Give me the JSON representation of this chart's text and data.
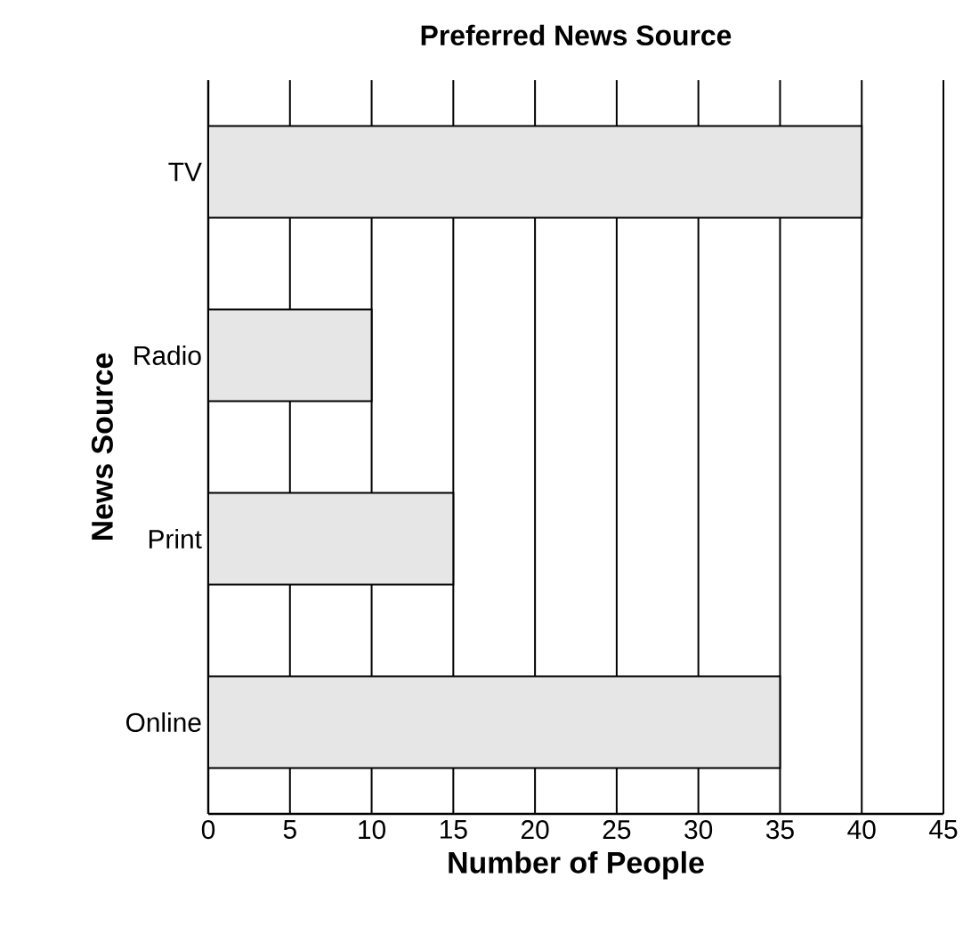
{
  "chart_data": {
    "type": "bar",
    "orientation": "horizontal",
    "title": "Preferred News Source",
    "xlabel": "Number of People",
    "ylabel": "News Source",
    "categories": [
      "TV",
      "Radio",
      "Print",
      "Online"
    ],
    "values": [
      40,
      10,
      15,
      35
    ],
    "color": "#e6e6e6",
    "xlim": [
      0,
      45
    ],
    "xticks": [
      0,
      5,
      10,
      15,
      20,
      25,
      30,
      35,
      40,
      45
    ],
    "grid": "x"
  }
}
